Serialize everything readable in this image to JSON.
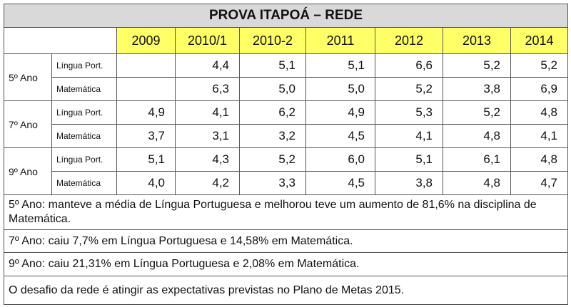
{
  "title": "PROVA ITAPOÁ – REDE",
  "table": {
    "columns": [
      "2009",
      "2010/1",
      "2010-2",
      "2011",
      "2012",
      "2013",
      "2014"
    ],
    "groups": [
      {
        "label": "5º Ano",
        "rows": [
          {
            "subject": "Língua Port.",
            "values": [
              null,
              "4,4",
              "5,1",
              "5,1",
              "6,6",
              "5,2",
              "5,2"
            ]
          },
          {
            "subject": "Matemática",
            "values": [
              null,
              "6,3",
              "5,0",
              "5,0",
              "5,2",
              "3,8",
              "6,9"
            ]
          }
        ]
      },
      {
        "label": "7º Ano",
        "rows": [
          {
            "subject": "Língua Port.",
            "values": [
              "4,9",
              "4,1",
              "6,2",
              "4,9",
              "5,3",
              "5,2",
              "4,8"
            ]
          },
          {
            "subject": "Matemática",
            "values": [
              "3,7",
              "3,1",
              "3,2",
              "4,5",
              "4,1",
              "4,8",
              "4,1"
            ]
          }
        ]
      },
      {
        "label": "9º Ano",
        "rows": [
          {
            "subject": "Língua Port.",
            "values": [
              "5,1",
              "4,3",
              "5,2",
              "6,0",
              "5,1",
              "6,1",
              "4,8"
            ]
          },
          {
            "subject": "Matemática",
            "values": [
              "4,0",
              "4,2",
              "3,3",
              "4,5",
              "3,8",
              "4,8",
              "4,7"
            ]
          }
        ]
      }
    ]
  },
  "notes": [
    "5º Ano: manteve a média de Língua Portuguesa e melhorou teve um aumento de 81,6% na disciplina de Matemática.",
    "7º Ano: caiu 7,7% em Língua Portuguesa e 14,58% em Matemática.",
    "9º Ano: caiu 21,31% em Língua Portuguesa e 2,08% em Matemática.",
    "O desafio da rede é atingir as expectativas previstas no Plano de Metas 2015."
  ]
}
